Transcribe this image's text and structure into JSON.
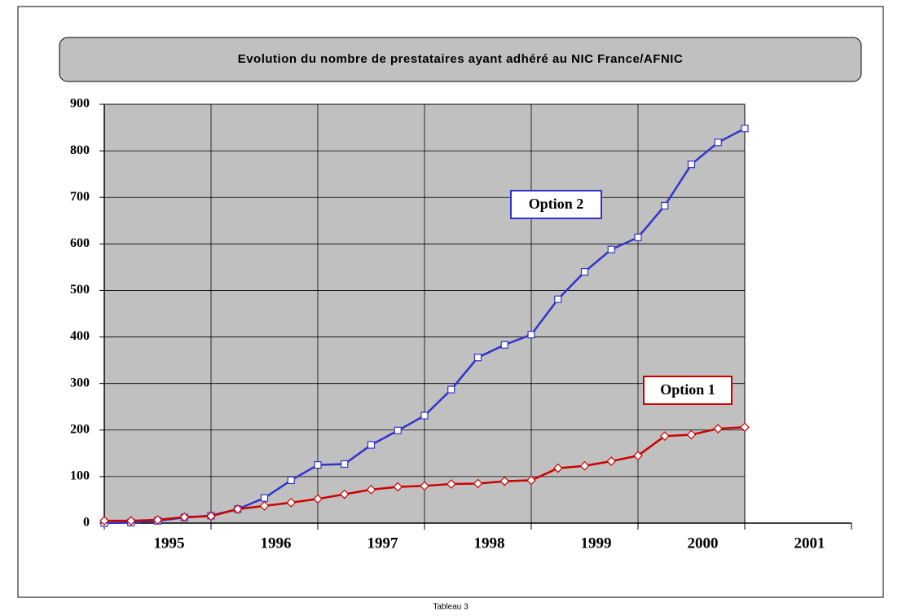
{
  "chart_data": {
    "type": "line",
    "title": "Evolution du nombre de prestataires ayant adhéré au NIC France/AFNIC",
    "caption": "Tableau 3",
    "x": [
      1995,
      1995.25,
      1995.5,
      1995.75,
      1996,
      1996.25,
      1996.5,
      1996.75,
      1997,
      1997.25,
      1997.5,
      1997.75,
      1998,
      1998.25,
      1998.5,
      1998.75,
      1999,
      1999.25,
      1999.5,
      1999.75,
      2000,
      2000.25,
      2000.5,
      2000.75,
      2001
    ],
    "series": [
      {
        "name": "Option 2",
        "color": "#3333cc",
        "marker": "square",
        "values": [
          0,
          1,
          5,
          12,
          16,
          30,
          54,
          92,
          125,
          127,
          168,
          199,
          231,
          287,
          356,
          383,
          405,
          481,
          540,
          588,
          614,
          682,
          771,
          818,
          848
        ]
      },
      {
        "name": "Option 1",
        "color": "#cc0000",
        "marker": "diamond",
        "values": [
          5,
          5,
          7,
          13,
          15,
          30,
          37,
          44,
          52,
          62,
          72,
          78,
          80,
          84,
          85,
          90,
          92,
          118,
          123,
          133,
          145,
          187,
          190,
          203,
          206
        ]
      }
    ],
    "xlim": [
      1995,
      2002
    ],
    "xticks": [
      1995,
      1996,
      1997,
      1998,
      1999,
      2000,
      2001,
      2002
    ],
    "year_labels": [
      1995,
      1996,
      1997,
      1998,
      1999,
      2000,
      2001
    ],
    "ylim": [
      0,
      900
    ],
    "yticks": [
      0,
      100,
      200,
      300,
      400,
      500,
      600,
      700,
      800,
      900
    ],
    "grid": true,
    "background": "#c0c0c0"
  }
}
